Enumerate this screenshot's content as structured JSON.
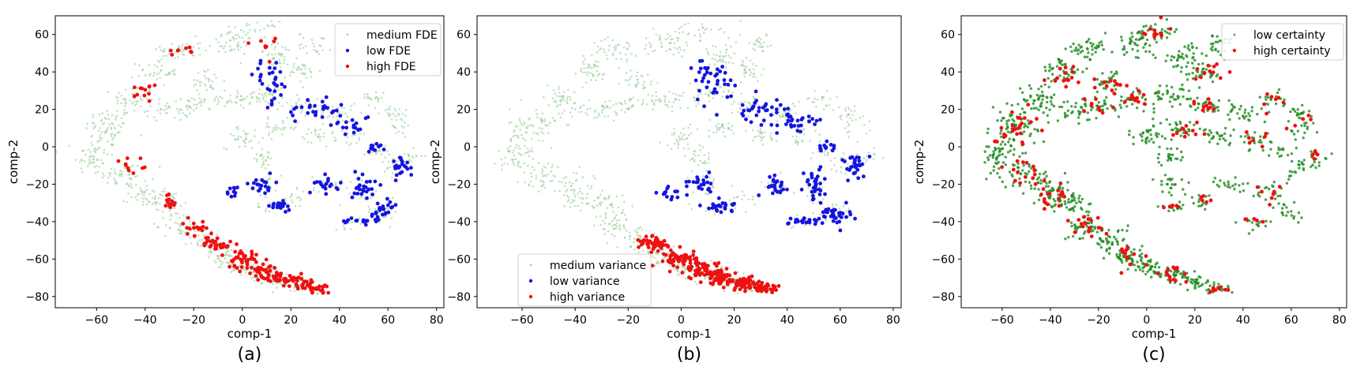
{
  "chart_data": [
    {
      "type": "scatter",
      "xlabel": "comp-1",
      "ylabel": "comp-2",
      "caption": "(a)",
      "xlim": [
        -77,
        83
      ],
      "ylim": [
        -86,
        70
      ],
      "xticks": [
        -60,
        -40,
        -20,
        0,
        20,
        40,
        60,
        80
      ],
      "yticks": [
        -80,
        -60,
        -40,
        -20,
        0,
        20,
        40,
        60
      ],
      "grid": false,
      "legend_position": "top-right",
      "series": [
        {
          "name": "medium FDE",
          "color": "#90c890",
          "marker_size": 1.3,
          "opacity": 0.55,
          "role": "background"
        },
        {
          "name": "low FDE",
          "color": "#1515e0",
          "marker_size": 2.4,
          "opacity": 1,
          "role": "low"
        },
        {
          "name": "high FDE",
          "color": "#ee1111",
          "marker_size": 2.4,
          "opacity": 1,
          "role": "high"
        }
      ]
    },
    {
      "type": "scatter",
      "xlabel": "comp-1",
      "ylabel": "comp-2",
      "caption": "(b)",
      "xlim": [
        -77,
        83
      ],
      "ylim": [
        -86,
        70
      ],
      "xticks": [
        -60,
        -40,
        -20,
        0,
        20,
        40,
        60,
        80
      ],
      "yticks": [
        -80,
        -60,
        -40,
        -20,
        0,
        20,
        40,
        60
      ],
      "grid": false,
      "legend_position": "bottom-left",
      "series": [
        {
          "name": "medium variance",
          "color": "#90c890",
          "marker_size": 1.3,
          "opacity": 0.55,
          "role": "background"
        },
        {
          "name": "low variance",
          "color": "#1515e0",
          "marker_size": 2.4,
          "opacity": 1,
          "role": "low"
        },
        {
          "name": "high variance",
          "color": "#ee1111",
          "marker_size": 2.4,
          "opacity": 1,
          "role": "high"
        }
      ]
    },
    {
      "type": "scatter",
      "xlabel": "comp-1",
      "ylabel": "comp-2",
      "caption": "(c)",
      "xlim": [
        -77,
        83
      ],
      "ylim": [
        -86,
        70
      ],
      "xticks": [
        -60,
        -40,
        -20,
        0,
        20,
        40,
        60,
        80
      ],
      "yticks": [
        -80,
        -60,
        -40,
        -20,
        0,
        20,
        40,
        60
      ],
      "grid": false,
      "legend_position": "top-right",
      "series": [
        {
          "name": "low certainty",
          "color": "#1f8a1f",
          "marker_size": 1.7,
          "opacity": 0.8,
          "role": "background"
        },
        {
          "name": "high certainty",
          "color": "#ee1111",
          "marker_size": 2.4,
          "opacity": 1,
          "role": "high"
        }
      ]
    }
  ]
}
